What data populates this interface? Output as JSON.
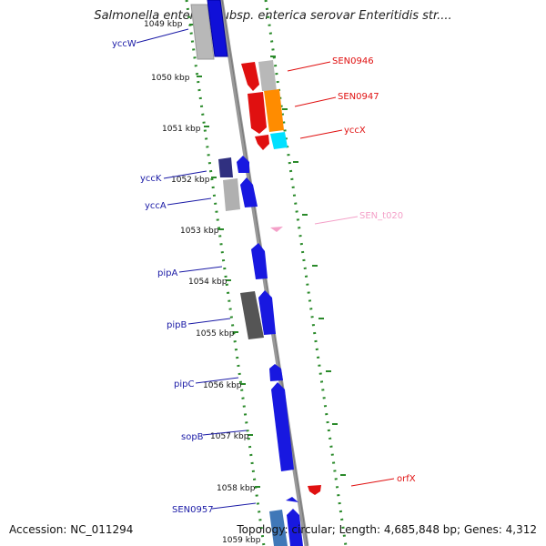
{
  "title": "Salmonella enterica subsp. enterica serovar Enteritidis str....",
  "accession": "Accession: NC_011294",
  "topology": "Topology: circular; Length: 4,685,848 bp; Genes: 4,312",
  "ticks": [
    "1049 kbp",
    "1050 kbp",
    "1051 kbp",
    "1052 kbp",
    "1053 kbp",
    "1054 kbp",
    "1055 kbp",
    "1056 kbp",
    "1057 kbp",
    "1058 kbp",
    "1059 kbp"
  ],
  "genes": [
    {
      "label": "yccW",
      "color": "#1a1aa6"
    },
    {
      "label": "yccK",
      "color": "#1a1aa6"
    },
    {
      "label": "yccA",
      "color": "#1a1aa6"
    },
    {
      "label": "pipA",
      "color": "#1a1aa6"
    },
    {
      "label": "pipB",
      "color": "#1a1aa6"
    },
    {
      "label": "pipC",
      "color": "#1a1aa6"
    },
    {
      "label": "sopB",
      "color": "#1a1aa6"
    },
    {
      "label": "SEN0957",
      "color": "#1a1aa6"
    },
    {
      "label": "SEN0946",
      "color": "#e01010"
    },
    {
      "label": "SEN0947",
      "color": "#e01010"
    },
    {
      "label": "yccX",
      "color": "#e01010"
    },
    {
      "label": "SEN_t020",
      "color": "#f4a0c8"
    },
    {
      "label": "orfX",
      "color": "#e01010"
    }
  ]
}
